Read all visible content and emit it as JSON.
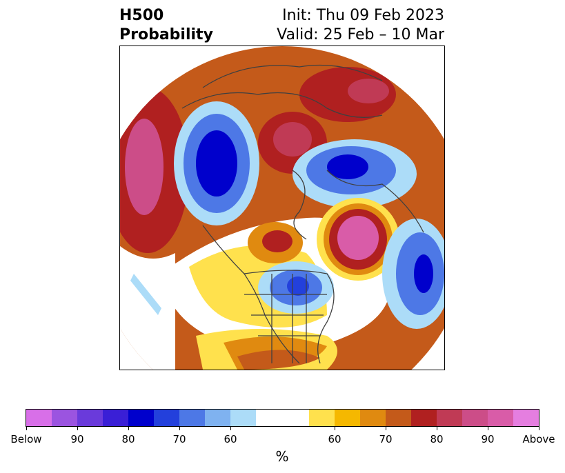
{
  "title": {
    "left_line1": "H500",
    "left_line2": "Probability",
    "right_line1": "Init: Thu 09 Feb 2023",
    "right_line2": "Valid: 25 Feb – 10 Mar"
  },
  "colorbar": {
    "units": "%",
    "colors": [
      "#d86fe8",
      "#9b54e0",
      "#6a3adb",
      "#3a1fd6",
      "#0000cc",
      "#2340dc",
      "#4d78e6",
      "#7fb2f0",
      "#acdcf8",
      "#ffffff",
      "#ffe14d",
      "#f5b800",
      "#e08a10",
      "#c45a1a",
      "#b02020",
      "#c03a55",
      "#cc4d88",
      "#d95ca8",
      "#e57ee0"
    ],
    "tick_labels": [
      "Below",
      "90",
      "80",
      "70",
      "60",
      "60",
      "70",
      "80",
      "90",
      "Above"
    ]
  },
  "icons": {
    "map": "north-america-polar-map"
  }
}
